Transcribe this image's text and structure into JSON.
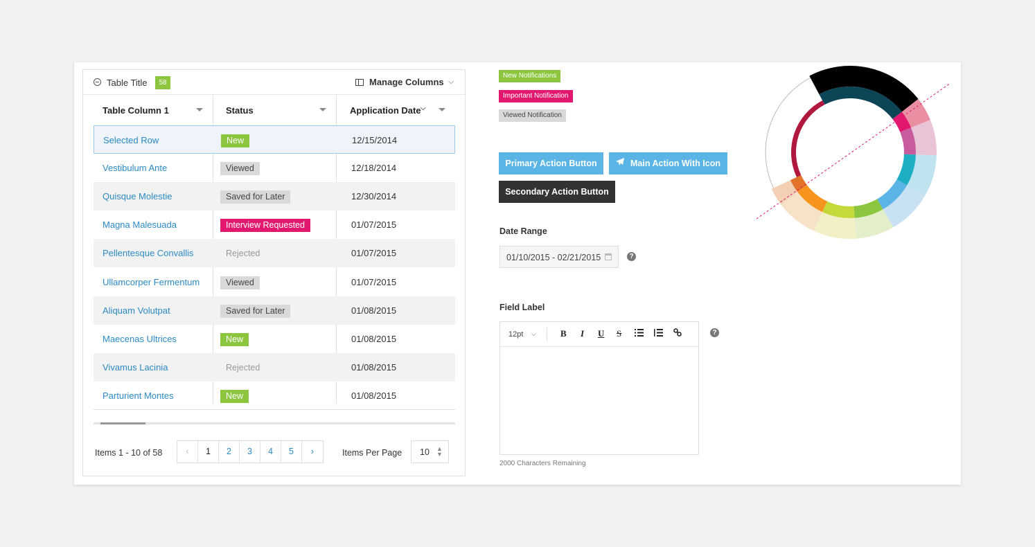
{
  "table": {
    "title": "Table Title",
    "count": "58",
    "manage_columns_label": "Manage Columns",
    "columns": [
      "Table Column 1",
      "Status",
      "Application Date"
    ],
    "rows": [
      {
        "name": "Selected Row",
        "status": "New",
        "status_type": "new",
        "date": "12/15/2014",
        "selected": true
      },
      {
        "name": "Vestibulum Ante",
        "status": "Viewed",
        "status_type": "viewed",
        "date": "12/18/2014"
      },
      {
        "name": "Quisque Molestie",
        "status": "Saved for Later",
        "status_type": "saved",
        "date": "12/30/2014"
      },
      {
        "name": "Magna Malesuada",
        "status": "Interview Requested",
        "status_type": "interview",
        "date": "01/07/2015"
      },
      {
        "name": "Pellentesque Convallis",
        "status": "Rejected",
        "status_type": "rejected",
        "date": "01/07/2015"
      },
      {
        "name": "Ullamcorper Fermentum",
        "status": "Viewed",
        "status_type": "viewed",
        "date": "01/07/2015"
      },
      {
        "name": "Aliquam Volutpat",
        "status": "Saved for Later",
        "status_type": "saved",
        "date": "01/08/2015"
      },
      {
        "name": "Maecenas Ultrices",
        "status": "New",
        "status_type": "new",
        "date": "01/08/2015"
      },
      {
        "name": "Vivamus Lacinia",
        "status": "Rejected",
        "status_type": "rejected",
        "date": "01/08/2015"
      },
      {
        "name": "Parturient Montes",
        "status": "New",
        "status_type": "new",
        "date": "01/08/2015"
      }
    ]
  },
  "pagination": {
    "items_label": "Items 1 - 10 of 58",
    "prev": "‹",
    "pages": [
      "1",
      "2",
      "3",
      "4",
      "5"
    ],
    "current_page": "1",
    "next": "›",
    "items_per_page_label": "Items Per Page",
    "items_per_page": "10"
  },
  "notifications": {
    "new": "New Notifications",
    "important": "Important Notification",
    "viewed": "Viewed Notification"
  },
  "buttons": {
    "primary": "Primary Action Button",
    "main_with_icon": "Main Action With Icon",
    "secondary": "Secondary Action Button"
  },
  "date_range": {
    "label": "Date Range",
    "value": "01/10/2015 - 02/21/2015"
  },
  "editor": {
    "label": "Field Label",
    "font_size": "12pt",
    "tools": [
      "B",
      "I",
      "U",
      "S"
    ],
    "chars_remaining": "2000 Characters Remaining"
  },
  "colors": {
    "accent_blue": "#5ab4e5",
    "link_blue": "#2b8ac4",
    "green": "#8cc63f",
    "magenta": "#e2186f",
    "dark": "#333333"
  }
}
